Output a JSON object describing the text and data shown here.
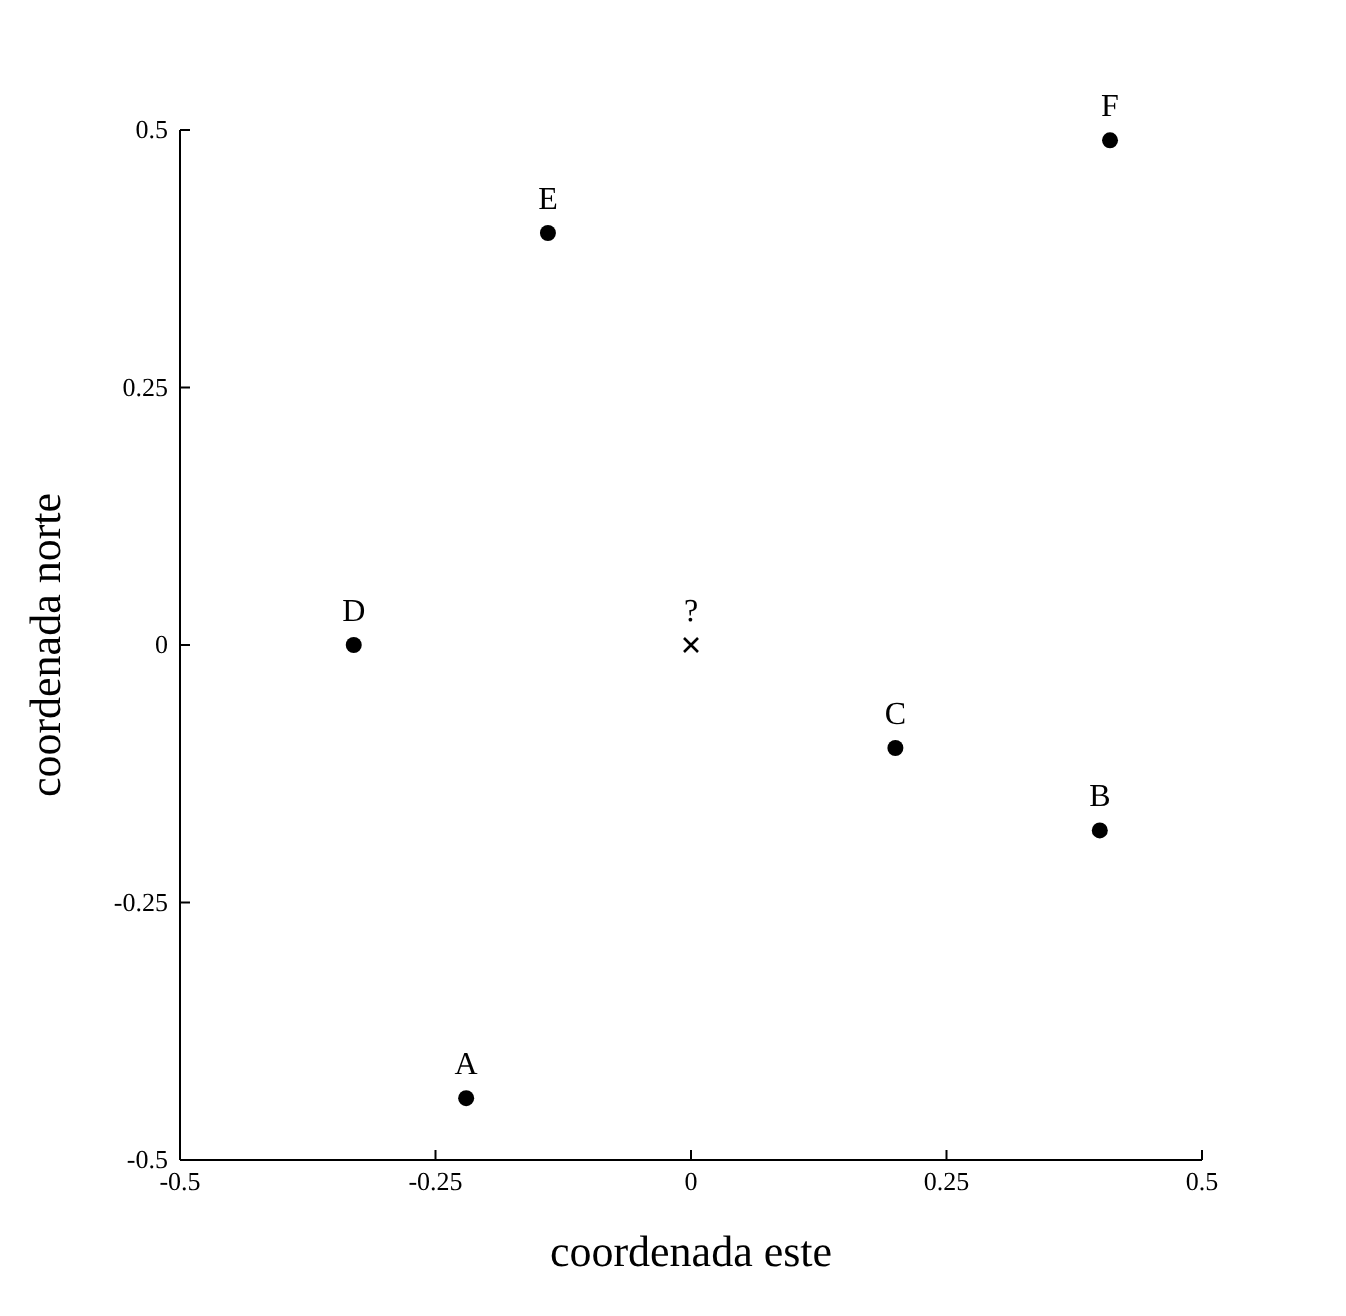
{
  "chart_data": {
    "type": "scatter",
    "xlabel": "coordenada este",
    "ylabel": "coordenada norte",
    "xlim": [
      -0.5,
      0.5
    ],
    "xticks": [
      -0.5,
      -0.25,
      0,
      0.25,
      0.5
    ],
    "ylim": [
      -0.5,
      0.5
    ],
    "yticks": [
      -0.5,
      -0.25,
      0,
      0.25,
      0.5
    ],
    "grid": false,
    "series": [
      {
        "color": "#000000",
        "marker": "circle",
        "x": [
          -0.22,
          0.4,
          0.2,
          -0.33,
          -0.14,
          0.41
        ],
        "values": [
          -0.44,
          -0.18,
          -0.1,
          0,
          0.4,
          0.49
        ]
      },
      {
        "color": "#000000",
        "marker": "cross",
        "x": [
          0
        ],
        "values": [
          0
        ]
      }
    ],
    "annotations": [
      {
        "text": "A",
        "x": -0.22,
        "y": -0.44
      },
      {
        "text": "B",
        "x": 0.4,
        "y": -0.18
      },
      {
        "text": "C",
        "x": 0.2,
        "y": -0.1
      },
      {
        "text": "D",
        "x": -0.33,
        "y": 0
      },
      {
        "text": "E",
        "x": -0.14,
        "y": 0.4
      },
      {
        "text": "F",
        "x": 0.41,
        "y": 0.49
      },
      {
        "text": "?",
        "x": 0,
        "y": 0
      }
    ]
  }
}
